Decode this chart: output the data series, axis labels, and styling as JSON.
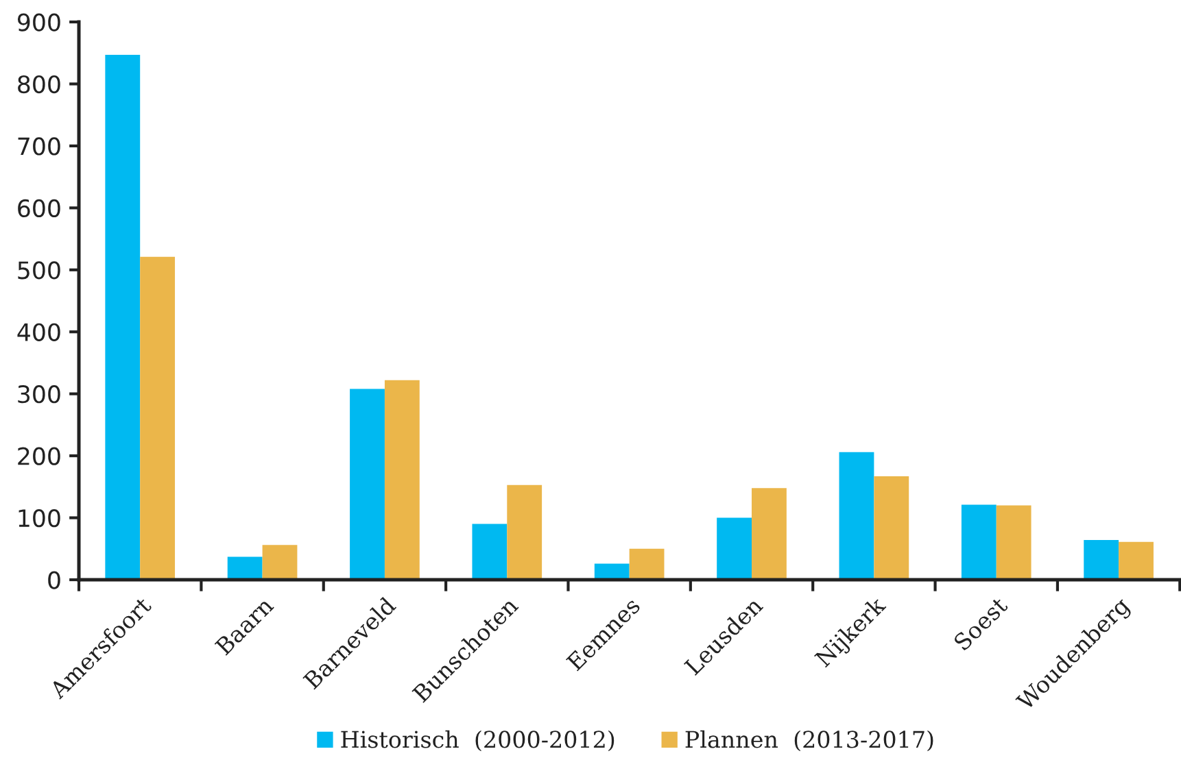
{
  "chart_data": {
    "type": "bar",
    "categories": [
      "Amersfoort",
      "Baarn",
      "Barneveld",
      "Bunschoten",
      "Eemnes",
      "Leusden",
      "Nijkerk",
      "Soest",
      "Woudenberg"
    ],
    "series": [
      {
        "name": "Historisch  (2000-2012)",
        "color": "#00b9f1",
        "values": [
          847,
          37,
          308,
          90,
          26,
          100,
          206,
          121,
          64
        ]
      },
      {
        "name": "Plannen  (2013-2017)",
        "color": "#ebb64a",
        "values": [
          521,
          56,
          322,
          153,
          50,
          148,
          167,
          120,
          61
        ]
      }
    ],
    "ylim": [
      0,
      900
    ],
    "yticks": [
      0,
      100,
      200,
      300,
      400,
      500,
      600,
      700,
      800,
      900
    ],
    "legend": "bottom"
  }
}
